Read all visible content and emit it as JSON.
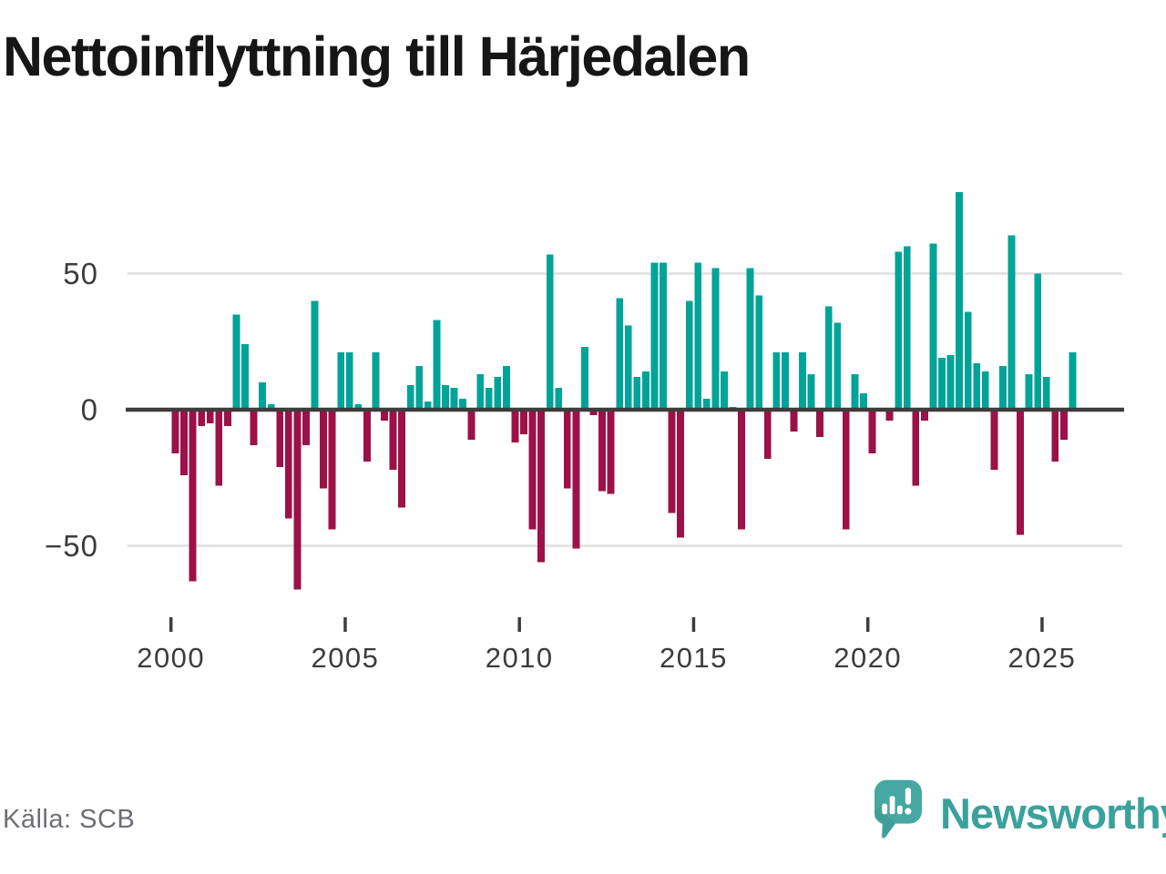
{
  "title": "Nettoinflyttning till Härjedalen",
  "source_label": "Källa: SCB",
  "branding": {
    "wordmark": "Newsworthy",
    "icon": "newsworthy-speech-bubble-chart-icon",
    "brand_color": "#3ba19c",
    "icon_color": "#46a8a2"
  },
  "chart_data": {
    "type": "bar",
    "title": "Nettoinflyttning till Härjedalen",
    "frequency": "quarterly",
    "start_period": "2000-Q1",
    "end_period": "2025-Q4",
    "values": [
      -16,
      -24,
      -63,
      -6,
      -5,
      -28,
      -6,
      35,
      24,
      -13,
      10,
      2,
      -21,
      -40,
      -66,
      -13,
      40,
      -29,
      -44,
      21,
      21,
      2,
      -19,
      21,
      -4,
      -22,
      -36,
      9,
      16,
      3,
      33,
      9,
      8,
      4,
      -11,
      13,
      8,
      12,
      16,
      -12,
      -9,
      -44,
      -56,
      57,
      8,
      -29,
      -51,
      23,
      -2,
      -30,
      -31,
      41,
      31,
      12,
      14,
      54,
      54,
      -38,
      -47,
      40,
      54,
      4,
      52,
      14,
      1,
      -44,
      52,
      42,
      -18,
      21,
      21,
      -8,
      21,
      13,
      -10,
      38,
      32,
      -44,
      13,
      6,
      -16,
      0,
      -4,
      58,
      60,
      -28,
      -4,
      61,
      19,
      20,
      80,
      36,
      17,
      14,
      -22,
      16,
      64,
      -46,
      13,
      50,
      12,
      -19,
      -11,
      21
    ],
    "x_ticks": [
      2000,
      2005,
      2010,
      2015,
      2020,
      2025
    ],
    "x_tick_labels": [
      "2000",
      "2005",
      "2010",
      "2015",
      "2020",
      "2025"
    ],
    "y_ticks": [
      50,
      0,
      -50
    ],
    "y_tick_labels": [
      "50",
      "0",
      "−50"
    ],
    "ylim": [
      -75,
      85
    ],
    "grid": "horizontal-only",
    "legend": "none",
    "positive_color": "#00a398",
    "negative_color": "#9c1147",
    "grid_color": "#e4e4e4",
    "zero_line_color": "#3d3d3d",
    "tick_label_color": "#3c3c3c"
  }
}
